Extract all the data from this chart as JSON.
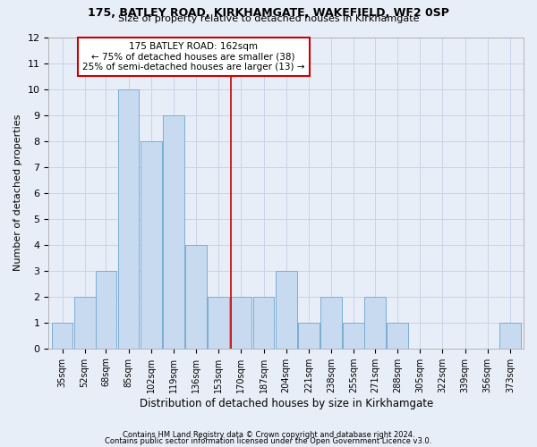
{
  "title1": "175, BATLEY ROAD, KIRKHAMGATE, WAKEFIELD, WF2 0SP",
  "title2": "Size of property relative to detached houses in Kirkhamgate",
  "xlabel": "Distribution of detached houses by size in Kirkhamgate",
  "ylabel": "Number of detached properties",
  "footnote1": "Contains HM Land Registry data © Crown copyright and database right 2024.",
  "footnote2": "Contains public sector information licensed under the Open Government Licence v3.0.",
  "annotation_title": "175 BATLEY ROAD: 162sqm",
  "annotation_line1": "← 75% of detached houses are smaller (38)",
  "annotation_line2": "25% of semi-detached houses are larger (13) →",
  "ref_line_x": 162,
  "bar_color": "#c8daf0",
  "bar_edge_color": "#7baed4",
  "ref_line_color": "#cc0000",
  "annotation_box_color": "#ffffff",
  "annotation_box_edge": "#cc0000",
  "grid_color": "#c8d4e8",
  "background_color": "#e8eef8",
  "bins": [
    35,
    52,
    68,
    85,
    102,
    119,
    136,
    153,
    170,
    187,
    204,
    221,
    238,
    255,
    271,
    288,
    305,
    322,
    339,
    356,
    373
  ],
  "counts": [
    1,
    2,
    3,
    10,
    8,
    9,
    4,
    2,
    2,
    2,
    3,
    1,
    2,
    1,
    2,
    1,
    0,
    0,
    0,
    0,
    1
  ],
  "ylim": [
    0,
    12
  ],
  "yticks": [
    0,
    1,
    2,
    3,
    4,
    5,
    6,
    7,
    8,
    9,
    10,
    11,
    12
  ]
}
